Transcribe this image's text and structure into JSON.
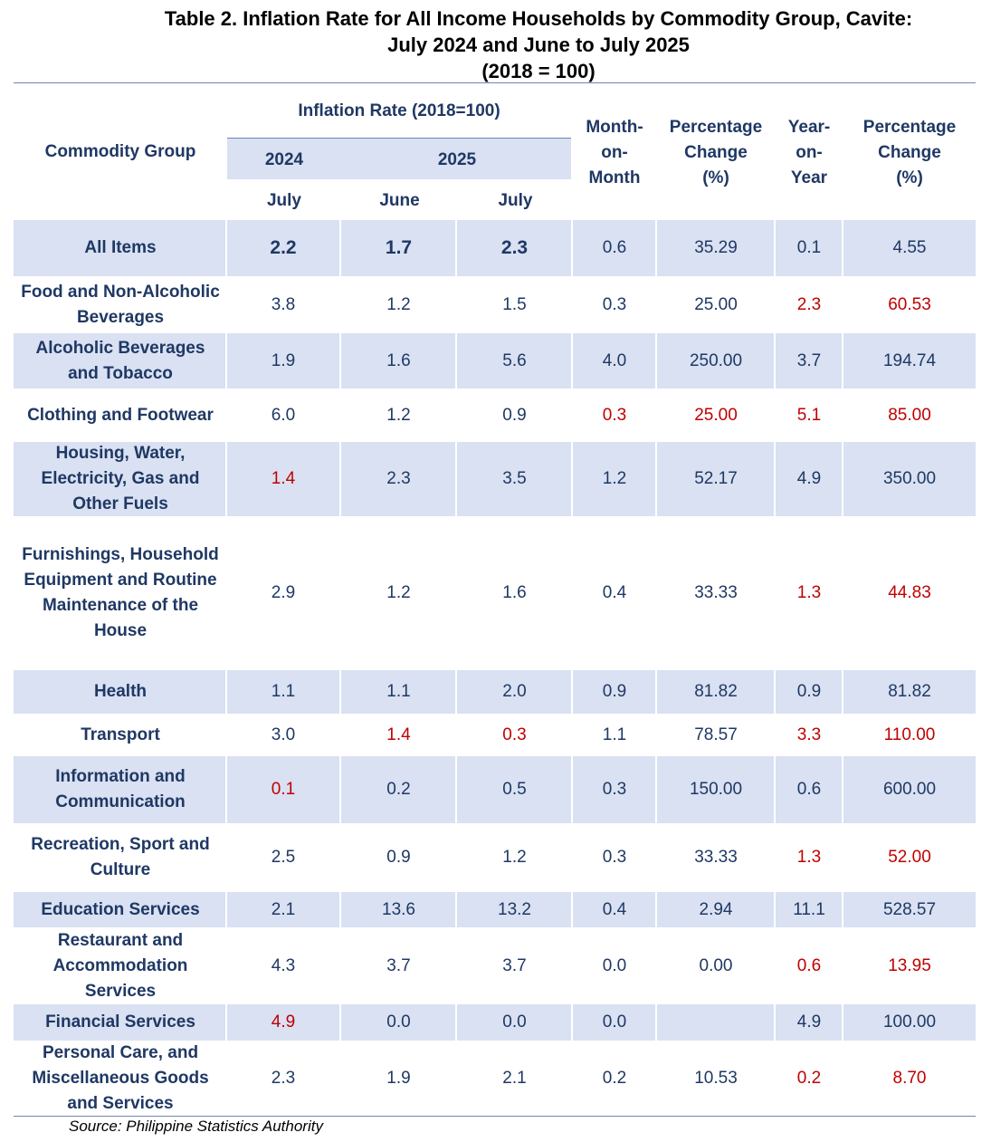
{
  "title": {
    "line1": "Table 2.  Inflation Rate for All Income Households by Commodity Group, Cavite:",
    "line2": "July 2024 and June to July 2025",
    "line3": "(2018 = 100)"
  },
  "headers": {
    "commodity_group": "Commodity Group",
    "inflation_rate": "Inflation Rate (2018=100)",
    "year_2024": "2024",
    "year_2025": "2025",
    "month_july_2024": "July",
    "month_june_2025": "June",
    "month_july_2025": "July",
    "month_on_month": "Month-on-Month",
    "mom_line1": "Month-",
    "mom_line2": "on-",
    "mom_line3": "Month",
    "pct_change_1_line1": "Percentage",
    "pct_change_1_line2": "Change",
    "pct_change_1_line3": "(%)",
    "yoy_line1": "Year-",
    "yoy_line2": "on-",
    "yoy_line3": "Year",
    "pct_change_2_line1": "Percentage",
    "pct_change_2_line2": "Change",
    "pct_change_2_line3": "(%)"
  },
  "rows": [
    {
      "name": "All Items",
      "v": [
        "2.2",
        "1.7",
        "2.3",
        "0.6",
        "35.29",
        "0.1",
        "4.55"
      ],
      "red": [
        false,
        false,
        false,
        false,
        false,
        false,
        false
      ]
    },
    {
      "name": "Food and Non-Alcoholic Beverages",
      "v": [
        "3.8",
        "1.2",
        "1.5",
        "0.3",
        "25.00",
        "2.3",
        "60.53"
      ],
      "red": [
        false,
        false,
        false,
        false,
        false,
        true,
        true
      ]
    },
    {
      "name": "Alcoholic Beverages and Tobacco",
      "v": [
        "1.9",
        "1.6",
        "5.6",
        "4.0",
        "250.00",
        "3.7",
        "194.74"
      ],
      "red": [
        false,
        false,
        false,
        false,
        false,
        false,
        false
      ]
    },
    {
      "name": "Clothing and Footwear",
      "v": [
        "6.0",
        "1.2",
        "0.9",
        "0.3",
        "25.00",
        "5.1",
        "85.00"
      ],
      "red": [
        false,
        false,
        false,
        true,
        true,
        true,
        true
      ]
    },
    {
      "name": "Housing, Water, Electricity, Gas and Other Fuels",
      "v": [
        "1.4",
        "2.3",
        "3.5",
        "1.2",
        "52.17",
        "4.9",
        "350.00"
      ],
      "red": [
        true,
        false,
        false,
        false,
        false,
        false,
        false
      ]
    },
    {
      "name": "Furnishings, Household Equipment and Routine Maintenance of the House",
      "v": [
        "2.9",
        "1.2",
        "1.6",
        "0.4",
        "33.33",
        "1.3",
        "44.83"
      ],
      "red": [
        false,
        false,
        false,
        false,
        false,
        true,
        true
      ]
    },
    {
      "name": "Health",
      "v": [
        "1.1",
        "1.1",
        "2.0",
        "0.9",
        "81.82",
        "0.9",
        "81.82"
      ],
      "red": [
        false,
        false,
        false,
        false,
        false,
        false,
        false
      ]
    },
    {
      "name": "Transport",
      "v": [
        "3.0",
        "1.4",
        "0.3",
        "1.1",
        "78.57",
        "3.3",
        "110.00"
      ],
      "red": [
        false,
        true,
        true,
        false,
        false,
        true,
        true
      ]
    },
    {
      "name": "Information and Communication",
      "v": [
        "0.1",
        "0.2",
        "0.5",
        "0.3",
        "150.00",
        "0.6",
        "600.00"
      ],
      "red": [
        true,
        false,
        false,
        false,
        false,
        false,
        false
      ]
    },
    {
      "name": "Recreation, Sport and Culture",
      "v": [
        "2.5",
        "0.9",
        "1.2",
        "0.3",
        "33.33",
        "1.3",
        "52.00"
      ],
      "red": [
        false,
        false,
        false,
        false,
        false,
        true,
        true
      ]
    },
    {
      "name": "Education Services",
      "v": [
        "2.1",
        "13.6",
        "13.2",
        "0.4",
        "2.94",
        "11.1",
        "528.57"
      ],
      "red": [
        false,
        false,
        false,
        false,
        false,
        false,
        false
      ]
    },
    {
      "name": "Restaurant and Accommodation Services",
      "v": [
        "4.3",
        "3.7",
        "3.7",
        "0.0",
        "0.00",
        "0.6",
        "13.95"
      ],
      "red": [
        false,
        false,
        false,
        false,
        false,
        true,
        true
      ]
    },
    {
      "name": "Financial Services",
      "v": [
        "4.9",
        "0.0",
        "0.0",
        "0.0",
        "",
        "4.9",
        "100.00"
      ],
      "red": [
        true,
        false,
        false,
        false,
        false,
        false,
        false
      ]
    },
    {
      "name": "Personal Care, and Miscellaneous Goods and Services",
      "v": [
        "2.3",
        "1.9",
        "2.1",
        "0.2",
        "10.53",
        "0.2",
        "8.70"
      ],
      "red": [
        false,
        false,
        false,
        false,
        false,
        true,
        true
      ]
    }
  ],
  "source": "Source: Philippine Statistics Authority",
  "colors": {
    "text": "#1f3864",
    "band": "#d9e1f2",
    "negative": "#c00000"
  }
}
